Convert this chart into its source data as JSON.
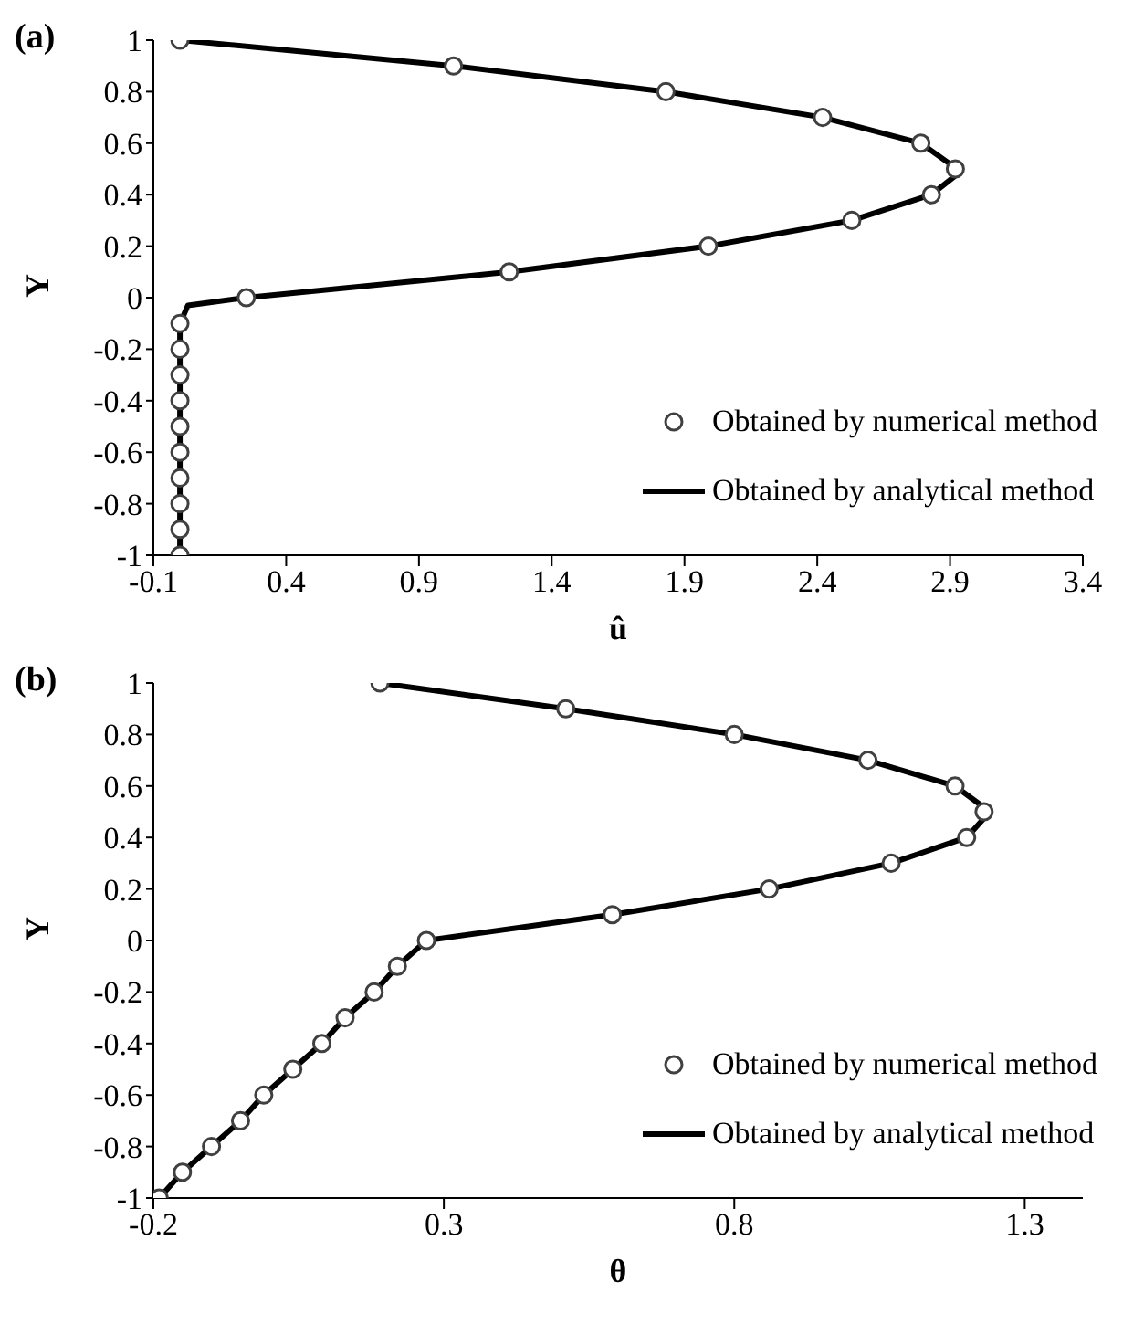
{
  "chart_data": [
    {
      "type": "scatter",
      "title": "(a)",
      "xlabel": "û",
      "ylabel": "Y",
      "xlim": [
        -0.1,
        3.4
      ],
      "xticks": [
        -0.1,
        0.4,
        0.9,
        1.4,
        1.9,
        2.4,
        2.9,
        3.4
      ],
      "ylim": [
        -1,
        1
      ],
      "yticks": [
        -1,
        -0.8,
        -0.6,
        -0.4,
        -0.2,
        0,
        0.2,
        0.4,
        0.6,
        0.8,
        1
      ],
      "grid": false,
      "legend": "bottom right",
      "series": [
        {
          "name": "Obtained by numerical method",
          "marker": "circle",
          "color": "#404040",
          "x": [
            0,
            1.03,
            1.83,
            2.42,
            2.79,
            2.92,
            2.83,
            2.53,
            1.99,
            1.24,
            0.25,
            0,
            0,
            0,
            0,
            0,
            0,
            0,
            0,
            0,
            0
          ],
          "values": [
            1,
            0.9,
            0.8,
            0.7,
            0.6,
            0.5,
            0.4,
            0.3,
            0.2,
            0.1,
            0,
            -0.1,
            -0.2,
            -0.3,
            -0.4,
            -0.5,
            -0.6,
            -0.7,
            -0.8,
            -0.9,
            -1
          ]
        },
        {
          "name": "Obtained by analytical method",
          "type": "line",
          "marker": "none",
          "line_style": "solid",
          "color": "#000000",
          "x": [
            0,
            1.03,
            1.83,
            2.42,
            2.79,
            2.94,
            2.83,
            2.53,
            1.99,
            1.24,
            0.25,
            0.03,
            0,
            0
          ],
          "values": [
            1,
            0.9,
            0.8,
            0.7,
            0.6,
            0.49,
            0.4,
            0.3,
            0.2,
            0.1,
            0,
            -0.03,
            -0.1,
            -1
          ]
        }
      ]
    },
    {
      "type": "scatter",
      "title": "(b)",
      "xlabel": "θ",
      "ylabel": "Y",
      "xlim": [
        -0.2,
        1.4
      ],
      "xticks": [
        -0.2,
        0.3,
        0.8,
        1.3
      ],
      "ylim": [
        -1,
        1
      ],
      "yticks": [
        -1,
        -0.8,
        -0.6,
        -0.4,
        -0.2,
        0,
        0.2,
        0.4,
        0.6,
        0.8,
        1
      ],
      "grid": false,
      "legend": "bottom right",
      "series": [
        {
          "name": "Obtained by numerical method",
          "marker": "circle",
          "color": "#404040",
          "x": [
            0.19,
            0.51,
            0.8,
            1.03,
            1.18,
            1.23,
            1.2,
            1.07,
            0.86,
            0.59,
            0.27,
            0.22,
            0.18,
            0.13,
            0.09,
            0.04,
            -0.01,
            -0.05,
            -0.1,
            -0.15,
            -0.19
          ],
          "values": [
            1,
            0.9,
            0.8,
            0.7,
            0.6,
            0.5,
            0.4,
            0.3,
            0.2,
            0.1,
            0,
            -0.1,
            -0.2,
            -0.3,
            -0.4,
            -0.5,
            -0.6,
            -0.7,
            -0.8,
            -0.9,
            -1
          ]
        },
        {
          "name": "Obtained by analytical method",
          "type": "line",
          "marker": "none",
          "line_style": "solid",
          "color": "#000000",
          "x": [
            0.19,
            0.51,
            0.8,
            1.03,
            1.18,
            1.24,
            1.2,
            1.07,
            0.86,
            0.59,
            0.27,
            0.22,
            0.18,
            0.13,
            0.09,
            0.04,
            -0.01,
            -0.05,
            -0.1,
            -0.15,
            -0.19
          ],
          "values": [
            1,
            0.9,
            0.8,
            0.7,
            0.6,
            0.5,
            0.4,
            0.3,
            0.2,
            0.1,
            0,
            -0.1,
            -0.2,
            -0.3,
            -0.4,
            -0.5,
            -0.6,
            -0.7,
            -0.8,
            -0.9,
            -1
          ]
        }
      ]
    }
  ]
}
